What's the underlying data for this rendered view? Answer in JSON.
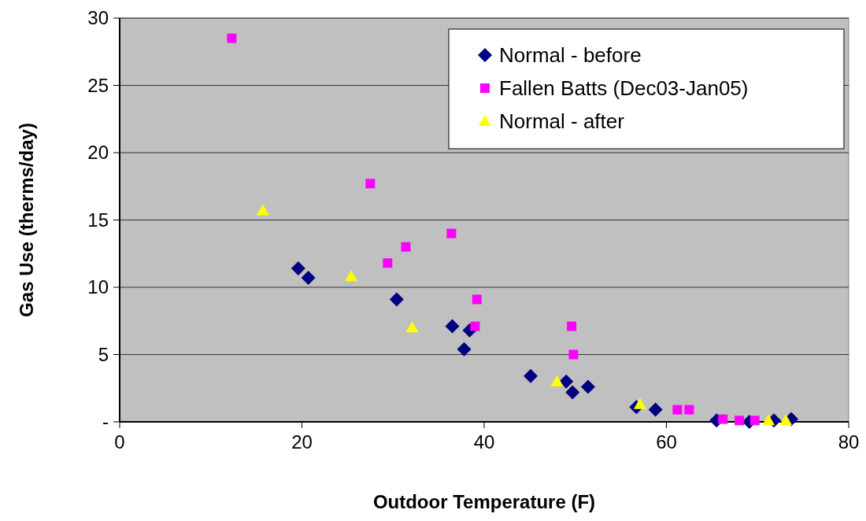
{
  "chart_data": {
    "type": "scatter",
    "xlabel": "Outdoor Temperature (F)",
    "ylabel": "Gas Use (therms/day)",
    "xlim": [
      0,
      80
    ],
    "xticks": [
      0,
      20,
      40,
      60,
      80
    ],
    "ylim": [
      0,
      30
    ],
    "yticks": [
      {
        "value": 0,
        "label": "-"
      },
      5,
      10,
      15,
      20,
      25,
      30
    ],
    "grid": "y",
    "legend": "top right",
    "series": [
      {
        "name": "Normal - before",
        "color": "#000080",
        "marker": "diamond",
        "x": [
          19.6,
          20.7,
          30.4,
          36.5,
          38.4,
          37.8,
          45.1,
          49.0,
          49.7,
          51.4,
          56.7,
          58.8,
          65.5,
          69.1,
          71.8,
          73.7
        ],
        "values": [
          11.4,
          10.7,
          9.1,
          7.1,
          6.8,
          5.4,
          3.4,
          3.0,
          2.2,
          2.6,
          1.1,
          0.9,
          0.1,
          0,
          0.1,
          0.2
        ]
      },
      {
        "name": "Fallen Batts (Dec03-Jan05)",
        "color": "#ff00ff",
        "marker": "square",
        "x": [
          12.3,
          27.5,
          36.4,
          31.4,
          29.4,
          39.2,
          39.0,
          49.6,
          49.8,
          61.2,
          62.5,
          66.2,
          68.0,
          69.7
        ],
        "values": [
          28.5,
          17.7,
          14.0,
          13.0,
          11.8,
          9.1,
          7.1,
          7.1,
          5.0,
          0.9,
          0.9,
          0.2,
          0.1,
          0.1
        ]
      },
      {
        "name": "Normal - after",
        "color": "#ffff00",
        "marker": "triangle",
        "x": [
          15.7,
          25.4,
          32.1,
          48.0,
          57.1,
          71.2,
          73.1
        ],
        "values": [
          15.7,
          10.8,
          7.0,
          3.0,
          1.3,
          0.1,
          0.1
        ]
      }
    ]
  }
}
